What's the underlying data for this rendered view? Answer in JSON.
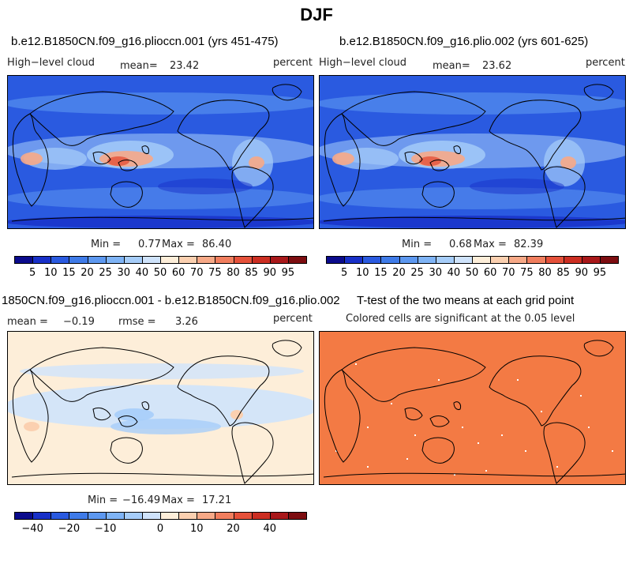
{
  "title": "DJF",
  "panels": [
    {
      "case_title": "b.e12.B1850CN.f09_g16.plioccn.001 (yrs 451-475)",
      "left_label": "High−level cloud",
      "mean_label": "mean=",
      "mean_value": "23.42",
      "units": "percent",
      "min_label": "Min =",
      "min_value": "0.77",
      "max_label": "Max =",
      "max_value": "86.40"
    },
    {
      "case_title": "b.e12.B1850CN.f09_g16.plio.002 (yrs 601-625)",
      "left_label": "High−level cloud",
      "mean_label": "mean=",
      "mean_value": "23.62",
      "units": "percent",
      "min_label": "Min =",
      "min_value": "0.68",
      "max_label": "Max =",
      "max_value": "82.39"
    },
    {
      "case_title": "1850CN.f09_g16.plioccn.001 - b.e12.B1850CN.f09_g16.plio.002",
      "mean_label": "mean =",
      "mean_value": "−0.19",
      "rmse_label": "rmse =",
      "rmse_value": "3.26",
      "units": "percent",
      "min_label": "Min =",
      "min_value": "−16.49",
      "max_label": "Max =",
      "max_value": "17.21"
    },
    {
      "case_title": "T-test of the two means at each grid point",
      "subtitle": "Colored cells are significant at the 0.05 level"
    }
  ],
  "colorbars": {
    "absolute": {
      "colors": [
        "#0b0b8c",
        "#1830c8",
        "#2a5ae0",
        "#3f7be8",
        "#5d98f0",
        "#7fb4f6",
        "#a6cdf9",
        "#cfe3fb",
        "#fdeed9",
        "#fbd0b0",
        "#f7a987",
        "#f17e5e",
        "#e5513a",
        "#cc2e22",
        "#a9181a",
        "#7d0d10"
      ],
      "labels": [
        "5",
        "10",
        "15",
        "20",
        "25",
        "30",
        "40",
        "50",
        "60",
        "70",
        "75",
        "80",
        "85",
        "90",
        "95"
      ]
    },
    "difference": {
      "colors": [
        "#0b0b8c",
        "#1830c8",
        "#2a5ae0",
        "#3f7be8",
        "#5d98f0",
        "#7fb4f6",
        "#a6cdf9",
        "#cfe3fb",
        "#fdeed9",
        "#fbd0b0",
        "#f7a987",
        "#f17e5e",
        "#e5513a",
        "#cc2e22",
        "#a9181a",
        "#7d0d10"
      ],
      "labels": [
        "−40",
        "−20",
        "−10",
        "0",
        "10",
        "20",
        "40"
      ],
      "label_positions": [
        1,
        3,
        5,
        8,
        10,
        12,
        14
      ]
    }
  },
  "map_colors": {
    "abs_background": "#2a5ae0",
    "abs_deep": "#1830c8",
    "abs_mid": "#5d98f0",
    "abs_light": "#a6cdf9",
    "abs_warm": "#f7a987",
    "abs_hot": "#e5513a",
    "diff_background": "#fdeed9",
    "diff_blue": "#cfe3fb",
    "diff_blue2": "#a6cdf9",
    "diff_red": "#fbd0b0",
    "ttest_fill": "#f37a44"
  }
}
